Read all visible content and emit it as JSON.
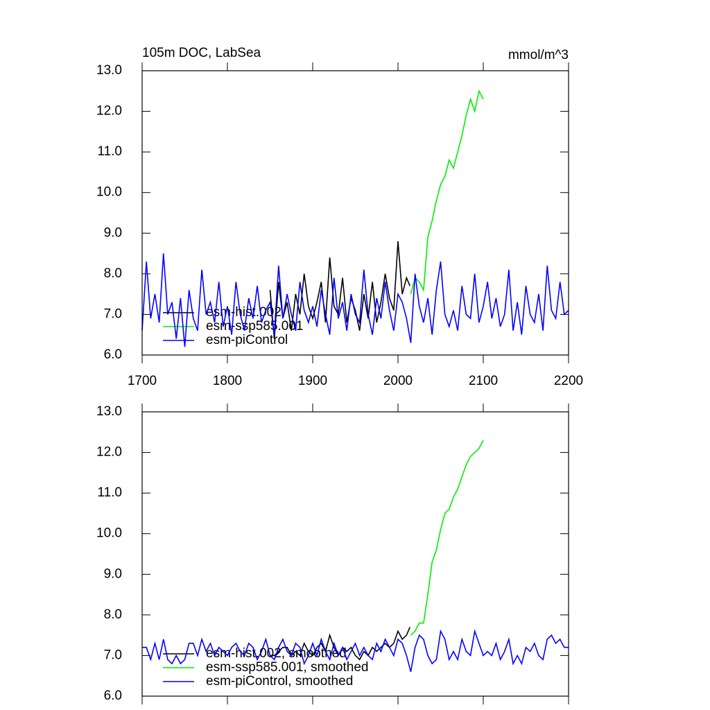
{
  "chart_data": [
    {
      "type": "line",
      "title": "105m DOC, LabSea",
      "units": "mmol/m^3",
      "xlim": [
        1700,
        2200
      ],
      "xticks": [
        1700,
        1800,
        1900,
        2000,
        2100,
        2200
      ],
      "xtick_labels": true,
      "ylim": [
        6,
        13
      ],
      "yticks": [
        {
          "value": 6,
          "label": "6.0"
        },
        {
          "value": 7,
          "label": "7.0"
        },
        {
          "value": 8,
          "label": "8.0"
        },
        {
          "value": 9,
          "label": "9.0"
        },
        {
          "value": 10,
          "label": "10.0"
        },
        {
          "value": 11,
          "label": "11.0"
        },
        {
          "value": 12,
          "label": "12.0"
        },
        {
          "value": 13,
          "label": "13.0"
        }
      ],
      "series": [
        {
          "name": "esm-hist.002",
          "color": "#000000",
          "x": [
            1850,
            1855,
            1860,
            1865,
            1870,
            1875,
            1880,
            1885,
            1890,
            1895,
            1900,
            1905,
            1910,
            1915,
            1920,
            1925,
            1930,
            1935,
            1940,
            1945,
            1950,
            1955,
            1960,
            1965,
            1970,
            1975,
            1980,
            1985,
            1990,
            1995,
            2000,
            2005,
            2010,
            2014
          ],
          "values": [
            7.6,
            6.4,
            7.8,
            6.9,
            7.3,
            6.6,
            7.5,
            7.0,
            8.0,
            7.2,
            6.9,
            7.3,
            7.8,
            6.8,
            8.4,
            7.2,
            7.0,
            7.9,
            6.8,
            7.4,
            7.1,
            6.6,
            7.5,
            6.9,
            7.8,
            6.8,
            7.3,
            8.0,
            7.4,
            7.1,
            8.8,
            7.5,
            7.9,
            7.7
          ]
        },
        {
          "name": "esm-ssp585.001",
          "color": "#00ee00",
          "x": [
            2015,
            2020,
            2025,
            2030,
            2035,
            2040,
            2045,
            2050,
            2055,
            2060,
            2065,
            2070,
            2075,
            2080,
            2085,
            2090,
            2095,
            2100
          ],
          "values": [
            7.5,
            7.9,
            7.8,
            7.6,
            8.9,
            9.3,
            9.8,
            10.2,
            10.4,
            10.8,
            10.6,
            11.0,
            11.4,
            11.9,
            12.3,
            12.0,
            12.5,
            12.3
          ]
        },
        {
          "name": "esm-piControl",
          "color": "#0000ff",
          "x": [
            1700,
            1705,
            1710,
            1715,
            1720,
            1725,
            1730,
            1735,
            1740,
            1745,
            1750,
            1755,
            1760,
            1765,
            1770,
            1775,
            1780,
            1785,
            1790,
            1795,
            1800,
            1805,
            1810,
            1815,
            1820,
            1825,
            1830,
            1835,
            1840,
            1845,
            1850,
            1855,
            1860,
            1865,
            1870,
            1875,
            1880,
            1885,
            1890,
            1895,
            1900,
            1905,
            1910,
            1915,
            1920,
            1925,
            1930,
            1935,
            1940,
            1945,
            1950,
            1955,
            1960,
            1965,
            1970,
            1975,
            1980,
            1985,
            1990,
            1995,
            2000,
            2005,
            2010,
            2015,
            2020,
            2025,
            2030,
            2035,
            2040,
            2045,
            2050,
            2055,
            2060,
            2065,
            2070,
            2075,
            2080,
            2085,
            2090,
            2095,
            2100,
            2105,
            2110,
            2115,
            2120,
            2125,
            2130,
            2135,
            2140,
            2145,
            2150,
            2155,
            2160,
            2165,
            2170,
            2175,
            2180,
            2185,
            2190,
            2195,
            2200
          ],
          "values": [
            6.6,
            8.3,
            6.9,
            7.5,
            6.8,
            8.5,
            7.0,
            7.3,
            6.4,
            7.4,
            6.2,
            7.6,
            6.9,
            6.6,
            8.1,
            7.0,
            7.3,
            6.8,
            7.8,
            6.7,
            7.2,
            6.5,
            7.8,
            7.0,
            6.6,
            7.4,
            6.9,
            7.7,
            6.8,
            7.1,
            7.3,
            6.5,
            8.2,
            6.9,
            7.5,
            7.0,
            6.6,
            7.8,
            7.1,
            6.8,
            7.2,
            6.7,
            7.6,
            7.0,
            6.5,
            7.9,
            6.9,
            7.3,
            6.6,
            7.5,
            7.0,
            6.8,
            8.1,
            7.0,
            6.5,
            7.4,
            6.9,
            7.8,
            7.1,
            6.6,
            7.5,
            7.3,
            6.9,
            6.3,
            8.0,
            7.2,
            6.8,
            7.4,
            6.5,
            7.6,
            8.3,
            7.0,
            6.7,
            7.1,
            6.6,
            7.7,
            7.0,
            6.9,
            8.0,
            6.8,
            7.2,
            7.8,
            6.9,
            7.4,
            6.7,
            7.0,
            8.1,
            6.6,
            7.3,
            6.5,
            7.7,
            7.0,
            6.8,
            7.5,
            6.6,
            8.2,
            7.1,
            6.9,
            7.8,
            7.0,
            7.1
          ]
        }
      ]
    },
    {
      "type": "line",
      "xlim": [
        1700,
        2200
      ],
      "xticks": [
        1700,
        1800,
        1900,
        2000,
        2100,
        2200
      ],
      "xtick_labels": false,
      "ylim": [
        6,
        13
      ],
      "yticks": [
        {
          "value": 6,
          "label": "6.0"
        },
        {
          "value": 7,
          "label": "7.0"
        },
        {
          "value": 8,
          "label": "8.0"
        },
        {
          "value": 9,
          "label": "9.0"
        },
        {
          "value": 10,
          "label": "10.0"
        },
        {
          "value": 11,
          "label": "11.0"
        },
        {
          "value": 12,
          "label": "12.0"
        },
        {
          "value": 13,
          "label": "13.0"
        }
      ],
      "series": [
        {
          "name": "esm-hist.002, smoothed",
          "color": "#000000",
          "x": [
            1850,
            1855,
            1860,
            1865,
            1870,
            1875,
            1880,
            1885,
            1890,
            1895,
            1900,
            1905,
            1910,
            1915,
            1920,
            1925,
            1930,
            1935,
            1940,
            1945,
            1950,
            1955,
            1960,
            1965,
            1970,
            1975,
            1980,
            1985,
            1990,
            1995,
            2000,
            2005,
            2010,
            2014
          ],
          "values": [
            7.0,
            7.0,
            7.1,
            7.2,
            7.2,
            7.0,
            7.1,
            7.0,
            7.3,
            7.1,
            7.0,
            7.2,
            7.3,
            7.1,
            7.5,
            7.2,
            7.0,
            7.2,
            7.1,
            7.2,
            7.0,
            6.9,
            7.1,
            7.0,
            7.2,
            7.1,
            7.2,
            7.3,
            7.2,
            7.3,
            7.6,
            7.4,
            7.5,
            7.7
          ]
        },
        {
          "name": "esm-ssp585.001, smoothed",
          "color": "#00ee00",
          "x": [
            2015,
            2020,
            2025,
            2030,
            2035,
            2040,
            2045,
            2050,
            2055,
            2060,
            2065,
            2070,
            2075,
            2080,
            2085,
            2090,
            2095,
            2100
          ],
          "values": [
            7.5,
            7.6,
            7.8,
            7.8,
            8.5,
            9.3,
            9.6,
            10.1,
            10.5,
            10.6,
            10.9,
            11.1,
            11.4,
            11.7,
            11.9,
            12.0,
            12.1,
            12.3
          ]
        },
        {
          "name": "esm-piControl, smoothed",
          "color": "#0000ff",
          "x": [
            1700,
            1705,
            1710,
            1715,
            1720,
            1725,
            1730,
            1735,
            1740,
            1745,
            1750,
            1755,
            1760,
            1765,
            1770,
            1775,
            1780,
            1785,
            1790,
            1795,
            1800,
            1805,
            1810,
            1815,
            1820,
            1825,
            1830,
            1835,
            1840,
            1845,
            1850,
            1855,
            1860,
            1865,
            1870,
            1875,
            1880,
            1885,
            1890,
            1895,
            1900,
            1905,
            1910,
            1915,
            1920,
            1925,
            1930,
            1935,
            1940,
            1945,
            1950,
            1955,
            1960,
            1965,
            1970,
            1975,
            1980,
            1985,
            1990,
            1995,
            2000,
            2005,
            2010,
            2015,
            2020,
            2025,
            2030,
            2035,
            2040,
            2045,
            2050,
            2055,
            2060,
            2065,
            2070,
            2075,
            2080,
            2085,
            2090,
            2095,
            2100,
            2105,
            2110,
            2115,
            2120,
            2125,
            2130,
            2135,
            2140,
            2145,
            2150,
            2155,
            2160,
            2165,
            2170,
            2175,
            2180,
            2185,
            2190,
            2195,
            2200
          ],
          "values": [
            7.2,
            7.2,
            6.9,
            7.3,
            6.9,
            7.4,
            6.9,
            6.8,
            7.0,
            6.8,
            6.9,
            7.3,
            7.3,
            7.0,
            7.4,
            7.1,
            7.3,
            7.0,
            7.2,
            7.1,
            7.0,
            7.2,
            7.3,
            7.1,
            7.0,
            7.3,
            7.2,
            6.9,
            7.1,
            7.4,
            7.0,
            6.9,
            7.2,
            7.4,
            7.1,
            7.0,
            7.3,
            7.2,
            6.8,
            7.0,
            7.3,
            7.0,
            7.4,
            7.1,
            6.9,
            7.3,
            7.0,
            7.2,
            6.9,
            7.1,
            7.3,
            7.0,
            7.2,
            7.0,
            6.9,
            7.3,
            7.1,
            7.4,
            7.2,
            7.0,
            7.4,
            7.3,
            7.0,
            6.6,
            7.2,
            7.5,
            7.4,
            7.0,
            6.8,
            6.9,
            7.6,
            7.4,
            6.9,
            7.1,
            6.9,
            7.4,
            7.1,
            7.0,
            7.6,
            7.3,
            7.0,
            7.1,
            7.0,
            7.3,
            6.9,
            7.1,
            7.4,
            6.8,
            7.0,
            6.8,
            7.2,
            7.1,
            7.3,
            7.0,
            6.9,
            7.4,
            7.5,
            7.3,
            7.4,
            7.2,
            7.2
          ]
        }
      ]
    }
  ]
}
